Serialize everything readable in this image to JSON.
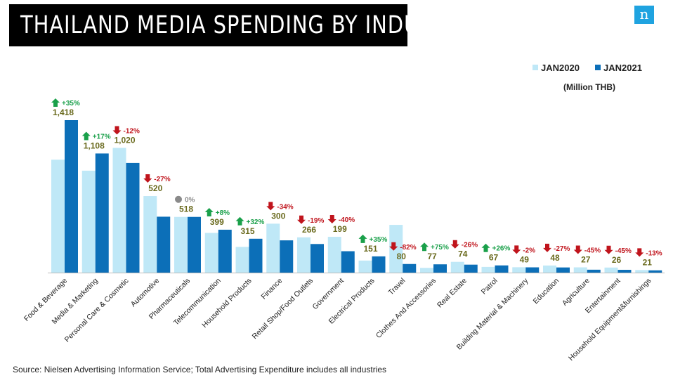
{
  "title": "THAILAND  MEDIA SPENDING BY INDUSTRY",
  "logo_text": "n",
  "units": "(Million THB)",
  "source": "Source: Nielsen Advertising Information Service; Total Advertising Expenditure includes all industries",
  "colors": {
    "jan2020": "#bfe8f7",
    "jan2021": "#0c6fb8",
    "up": "#1aa04a",
    "down": "#c0141c",
    "flat": "#8a8a8a",
    "value_label": "#6b6b1f"
  },
  "chart_data": {
    "type": "bar",
    "title": "THAILAND  MEDIA SPENDING BY INDUSTRY",
    "ylabel": "(Million THB)",
    "legend_position": "top-right",
    "categories": [
      "Food & Beverage",
      "Media & Marketing",
      "Personal Care & Cosmetic",
      "Automotive",
      "Pharmaceuticals",
      "Telecommunication",
      "Household Products",
      "Finance",
      "Retail Shop/Food Outlets",
      "Government",
      "Electrical Products",
      "Travel",
      "Clothes And Accessories",
      "Real Estate",
      "Patrol",
      "Building Material & Machinery",
      "Education",
      "Agriculture",
      "Entertainment",
      "Household Equipment&furnishings"
    ],
    "series": [
      {
        "name": "JAN2020",
        "values": [
          1050,
          948,
          1160,
          712,
          518,
          369,
          239,
          455,
          328,
          333,
          112,
          444,
          44,
          100,
          53,
          50,
          66,
          49,
          47,
          24
        ]
      },
      {
        "name": "JAN2021",
        "values": [
          1418,
          1108,
          1020,
          520,
          518,
          399,
          315,
          300,
          266,
          199,
          151,
          80,
          77,
          74,
          67,
          49,
          48,
          27,
          26,
          21
        ]
      }
    ],
    "value_labels": [
      "1,418",
      "1,108",
      "1,020",
      "520",
      "518",
      "399",
      "315",
      "300",
      "266",
      "199",
      "151",
      "80",
      "77",
      "74",
      "67",
      "49",
      "48",
      "27",
      "26",
      "21"
    ],
    "changes": [
      {
        "text": "+35%",
        "dir": "up"
      },
      {
        "text": "+17%",
        "dir": "up"
      },
      {
        "text": "-12%",
        "dir": "down"
      },
      {
        "text": "-27%",
        "dir": "down"
      },
      {
        "text": "0%",
        "dir": "flat"
      },
      {
        "text": "+8%",
        "dir": "up"
      },
      {
        "text": "+32%",
        "dir": "up"
      },
      {
        "text": "-34%",
        "dir": "down"
      },
      {
        "text": "-19%",
        "dir": "down"
      },
      {
        "text": "-40%",
        "dir": "down"
      },
      {
        "text": "+35%",
        "dir": "up"
      },
      {
        "text": "-82%",
        "dir": "down"
      },
      {
        "text": "+75%",
        "dir": "up"
      },
      {
        "text": "-26%",
        "dir": "down"
      },
      {
        "text": "+26%",
        "dir": "up"
      },
      {
        "text": "-2%",
        "dir": "down"
      },
      {
        "text": "-27%",
        "dir": "down"
      },
      {
        "text": "-45%",
        "dir": "down"
      },
      {
        "text": "-45%",
        "dir": "down"
      },
      {
        "text": "-13%",
        "dir": "down"
      }
    ],
    "ylim": [
      0,
      1418
    ],
    "grid": false
  }
}
